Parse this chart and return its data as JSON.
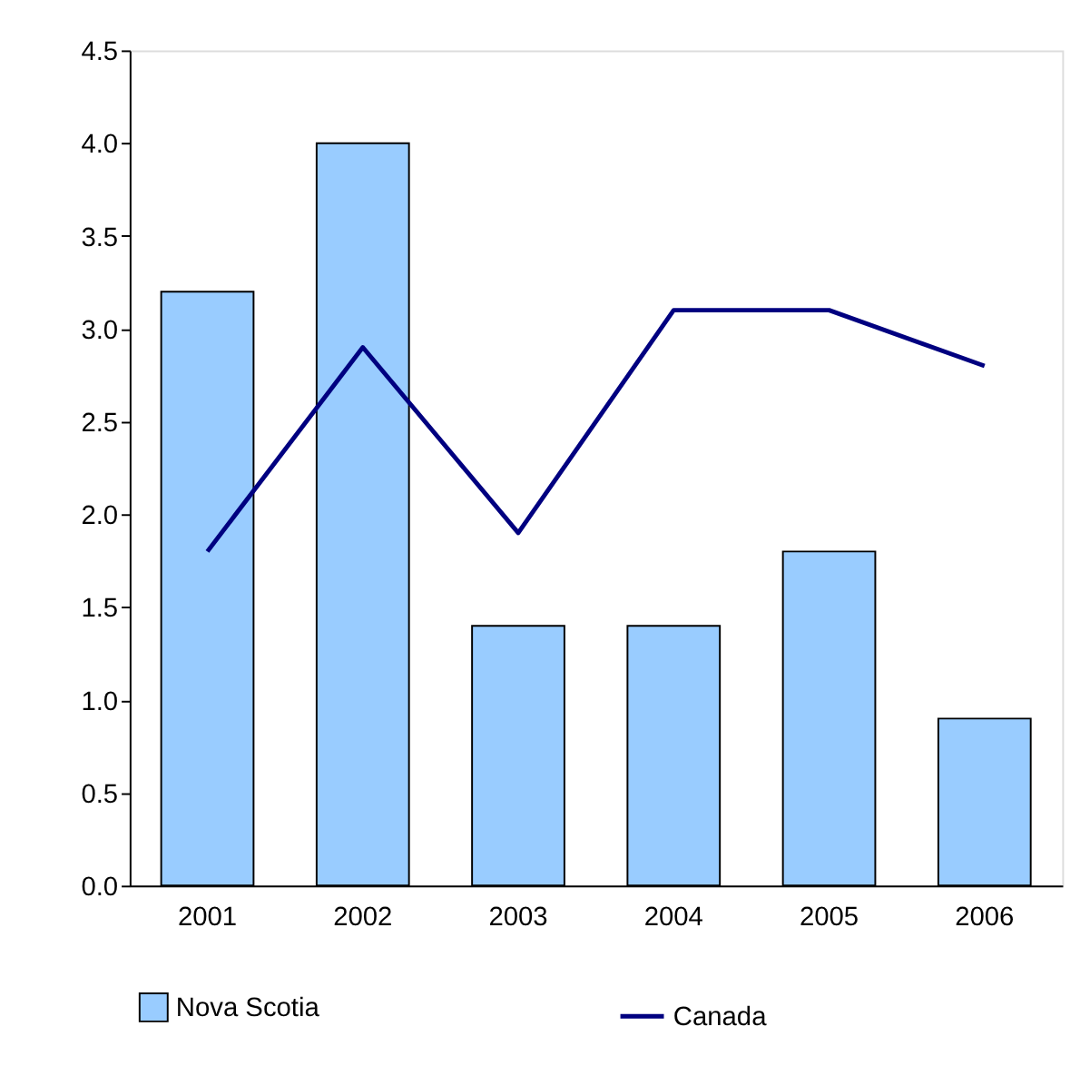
{
  "chart_data": {
    "type": "bar",
    "categories": [
      "2001",
      "2002",
      "2003",
      "2004",
      "2005",
      "2006"
    ],
    "series": [
      {
        "name": "Nova Scotia",
        "color": "#99ccff",
        "values": [
          3.2,
          4.0,
          1.4,
          1.4,
          1.8,
          0.9
        ]
      },
      {
        "name": "Canada",
        "type": "line",
        "color": "#000080",
        "values": [
          1.8,
          2.9,
          1.9,
          3.1,
          3.1,
          2.8
        ]
      }
    ],
    "ylim": [
      0,
      4.5
    ],
    "yticks": [
      {
        "value": 0,
        "label": "0.0"
      },
      {
        "value": 0.5,
        "label": "0.5"
      },
      {
        "value": 1,
        "label": "1.0"
      },
      {
        "value": 1.5,
        "label": "1.5"
      },
      {
        "value": 2,
        "label": "2.0"
      },
      {
        "value": 2.5,
        "label": "2.5"
      },
      {
        "value": 3,
        "label": "3.0"
      },
      {
        "value": 3.5,
        "label": "3.5"
      },
      {
        "value": 4,
        "label": "4.0"
      },
      {
        "value": 4.5,
        "label": "4.5"
      }
    ],
    "grid": false,
    "legend": "bottom"
  }
}
